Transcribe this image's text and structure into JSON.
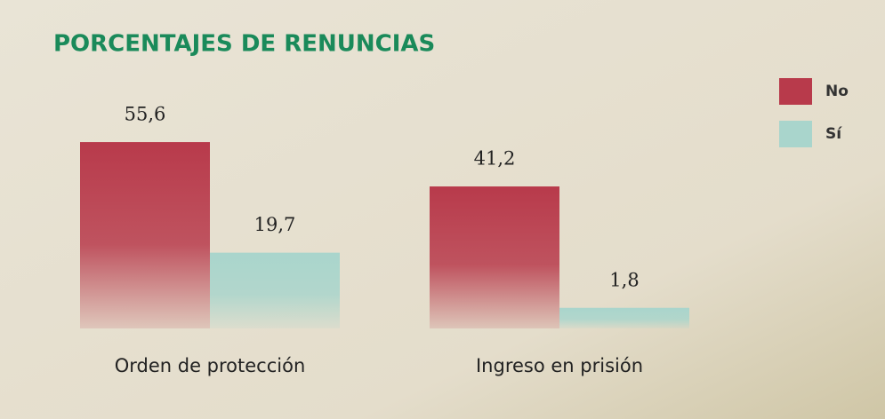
{
  "chart_data": {
    "type": "bar",
    "title": "PORCENTAJES DE RENUNCIAS",
    "categories": [
      "Orden de protección",
      "Ingreso en prisión"
    ],
    "series": [
      {
        "name": "No",
        "color": "#b83a4b",
        "values": [
          55.6,
          41.2
        ],
        "value_labels": [
          "55,6",
          "41,2"
        ]
      },
      {
        "name": "Sí",
        "color": "#a9d5cc",
        "values": [
          19.7,
          1.8
        ],
        "value_labels": [
          "19,7",
          "1,8"
        ]
      }
    ]
  }
}
